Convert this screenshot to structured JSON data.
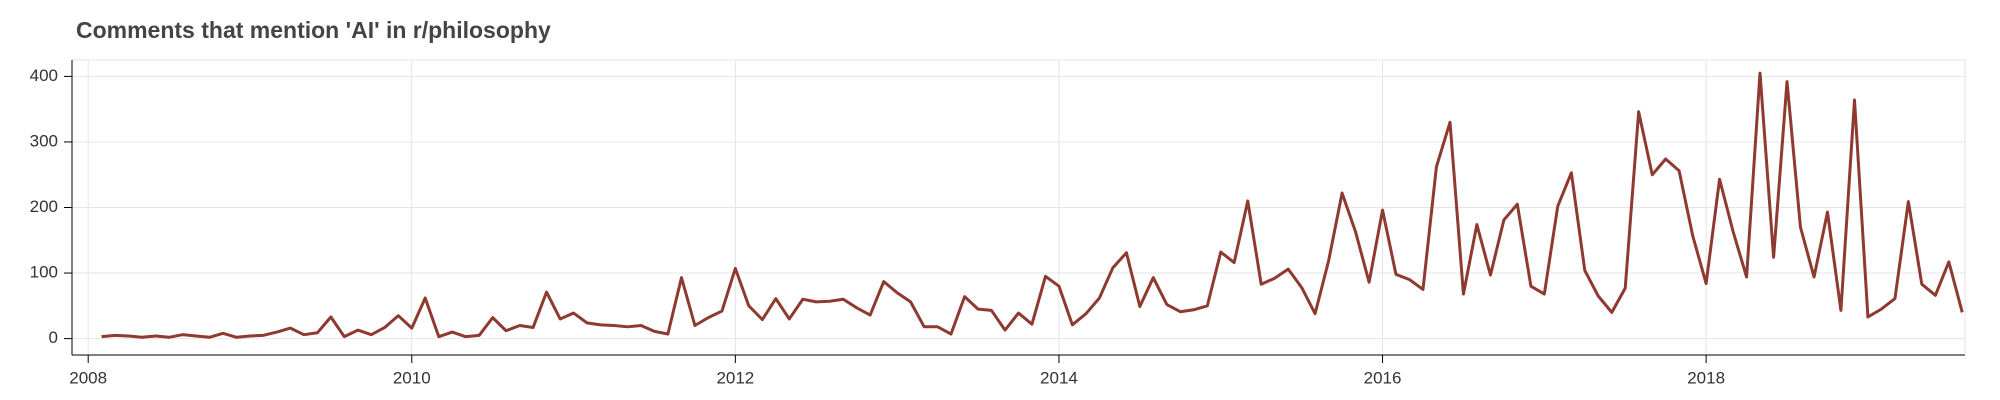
{
  "chart_data": {
    "type": "line",
    "title": "Comments that mention 'AI' in r/philosophy",
    "x": [
      2008.083,
      2008.167,
      2008.25,
      2008.333,
      2008.417,
      2008.5,
      2008.583,
      2008.667,
      2008.75,
      2008.833,
      2008.917,
      2009,
      2009.083,
      2009.167,
      2009.25,
      2009.333,
      2009.417,
      2009.5,
      2009.583,
      2009.667,
      2009.75,
      2009.833,
      2009.917,
      2010,
      2010.083,
      2010.167,
      2010.25,
      2010.333,
      2010.417,
      2010.5,
      2010.583,
      2010.667,
      2010.75,
      2010.833,
      2010.917,
      2011,
      2011.083,
      2011.167,
      2011.25,
      2011.333,
      2011.417,
      2011.5,
      2011.583,
      2011.667,
      2011.75,
      2011.833,
      2011.917,
      2012,
      2012.083,
      2012.167,
      2012.25,
      2012.333,
      2012.417,
      2012.5,
      2012.583,
      2012.667,
      2012.75,
      2012.833,
      2012.917,
      2013,
      2013.083,
      2013.167,
      2013.25,
      2013.333,
      2013.417,
      2013.5,
      2013.583,
      2013.667,
      2013.75,
      2013.833,
      2013.917,
      2014,
      2014.083,
      2014.167,
      2014.25,
      2014.333,
      2014.417,
      2014.5,
      2014.583,
      2014.667,
      2014.75,
      2014.833,
      2014.917,
      2015,
      2015.083,
      2015.167,
      2015.25,
      2015.333,
      2015.417,
      2015.5,
      2015.583,
      2015.667,
      2015.75,
      2015.833,
      2015.917,
      2016,
      2016.083,
      2016.167,
      2016.25,
      2016.333,
      2016.417,
      2016.5,
      2016.583,
      2016.667,
      2016.75,
      2016.833,
      2016.917,
      2017,
      2017.083,
      2017.167,
      2017.25,
      2017.333,
      2017.417,
      2017.5,
      2017.583,
      2017.667,
      2017.75,
      2017.833,
      2017.917,
      2018,
      2018.083,
      2018.167,
      2018.25,
      2018.333,
      2018.417,
      2018.5,
      2018.583,
      2018.667,
      2018.75,
      2018.833,
      2018.917,
      2019,
      2019.083,
      2019.167,
      2019.25,
      2019.333,
      2019.417,
      2019.5,
      2019.583
    ],
    "series": [
      {
        "color": "#8e3a30",
        "values": [
          3,
          5,
          4,
          2,
          4,
          2,
          6,
          4,
          2,
          8,
          2,
          4,
          5,
          10,
          16,
          6,
          9,
          33,
          3,
          13,
          6,
          17,
          35,
          16,
          62,
          3,
          10,
          3,
          5,
          32,
          12,
          20,
          17,
          71,
          30,
          39,
          24,
          21,
          20,
          18,
          20,
          11,
          7,
          93,
          20,
          32,
          42,
          107,
          50,
          29,
          61,
          30,
          60,
          56,
          57,
          60,
          47,
          36,
          87,
          70,
          56,
          18,
          18,
          7,
          64,
          45,
          43,
          13,
          39,
          22,
          95,
          80,
          21,
          38,
          62,
          108,
          131,
          49,
          93,
          52,
          41,
          44,
          50,
          132,
          116,
          210,
          83,
          92,
          106,
          78,
          38,
          119,
          222,
          163,
          86,
          196,
          98,
          90,
          75,
          262,
          330,
          68,
          174,
          97,
          181,
          205,
          80,
          68,
          202,
          253,
          104,
          65,
          40,
          77,
          346,
          250,
          274,
          256,
          157,
          84,
          243,
          163,
          94,
          405,
          124,
          392,
          170,
          94,
          193,
          43,
          364,
          33,
          45,
          61,
          209,
          83,
          66,
          117,
          40
        ]
      }
    ],
    "xlim": [
      2007.9,
      2019.6
    ],
    "xticks": [
      2008,
      2010,
      2012,
      2014,
      2016,
      2018
    ],
    "ylim": [
      -25,
      425
    ],
    "yticks": [
      0,
      100,
      200,
      300,
      400
    ],
    "grid": true
  }
}
